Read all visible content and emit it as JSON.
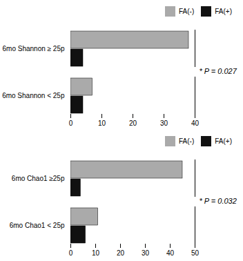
{
  "chart_data": [
    {
      "type": "bar",
      "orientation": "horizontal",
      "categories": [
        "6mo Shannon ≥ 25p",
        "6mo Shannon < 25p"
      ],
      "series": [
        {
          "name": "FA(-)",
          "color": "#aaaaaa",
          "values": [
            38,
            7
          ]
        },
        {
          "name": "FA(+)",
          "color": "#111111",
          "values": [
            4,
            4
          ]
        }
      ],
      "xlim": [
        0,
        40
      ],
      "xticks": [
        0,
        10,
        20,
        30,
        40
      ],
      "annotations": [
        "* P = 0.027"
      ],
      "legend": "upper right",
      "grid": false
    },
    {
      "type": "bar",
      "orientation": "horizontal",
      "categories": [
        "6mo Chao1 ≥25p",
        "6mo Chao1 < 25p"
      ],
      "series": [
        {
          "name": "FA(-)",
          "color": "#aaaaaa",
          "values": [
            45,
            11
          ]
        },
        {
          "name": "FA(+)",
          "color": "#111111",
          "values": [
            4,
            6
          ]
        }
      ],
      "xlim": [
        0,
        50
      ],
      "xticks": [
        0,
        10,
        20,
        30,
        40,
        50
      ],
      "annotations": [
        "* P = 0.032"
      ],
      "legend": "upper right",
      "grid": false
    }
  ]
}
